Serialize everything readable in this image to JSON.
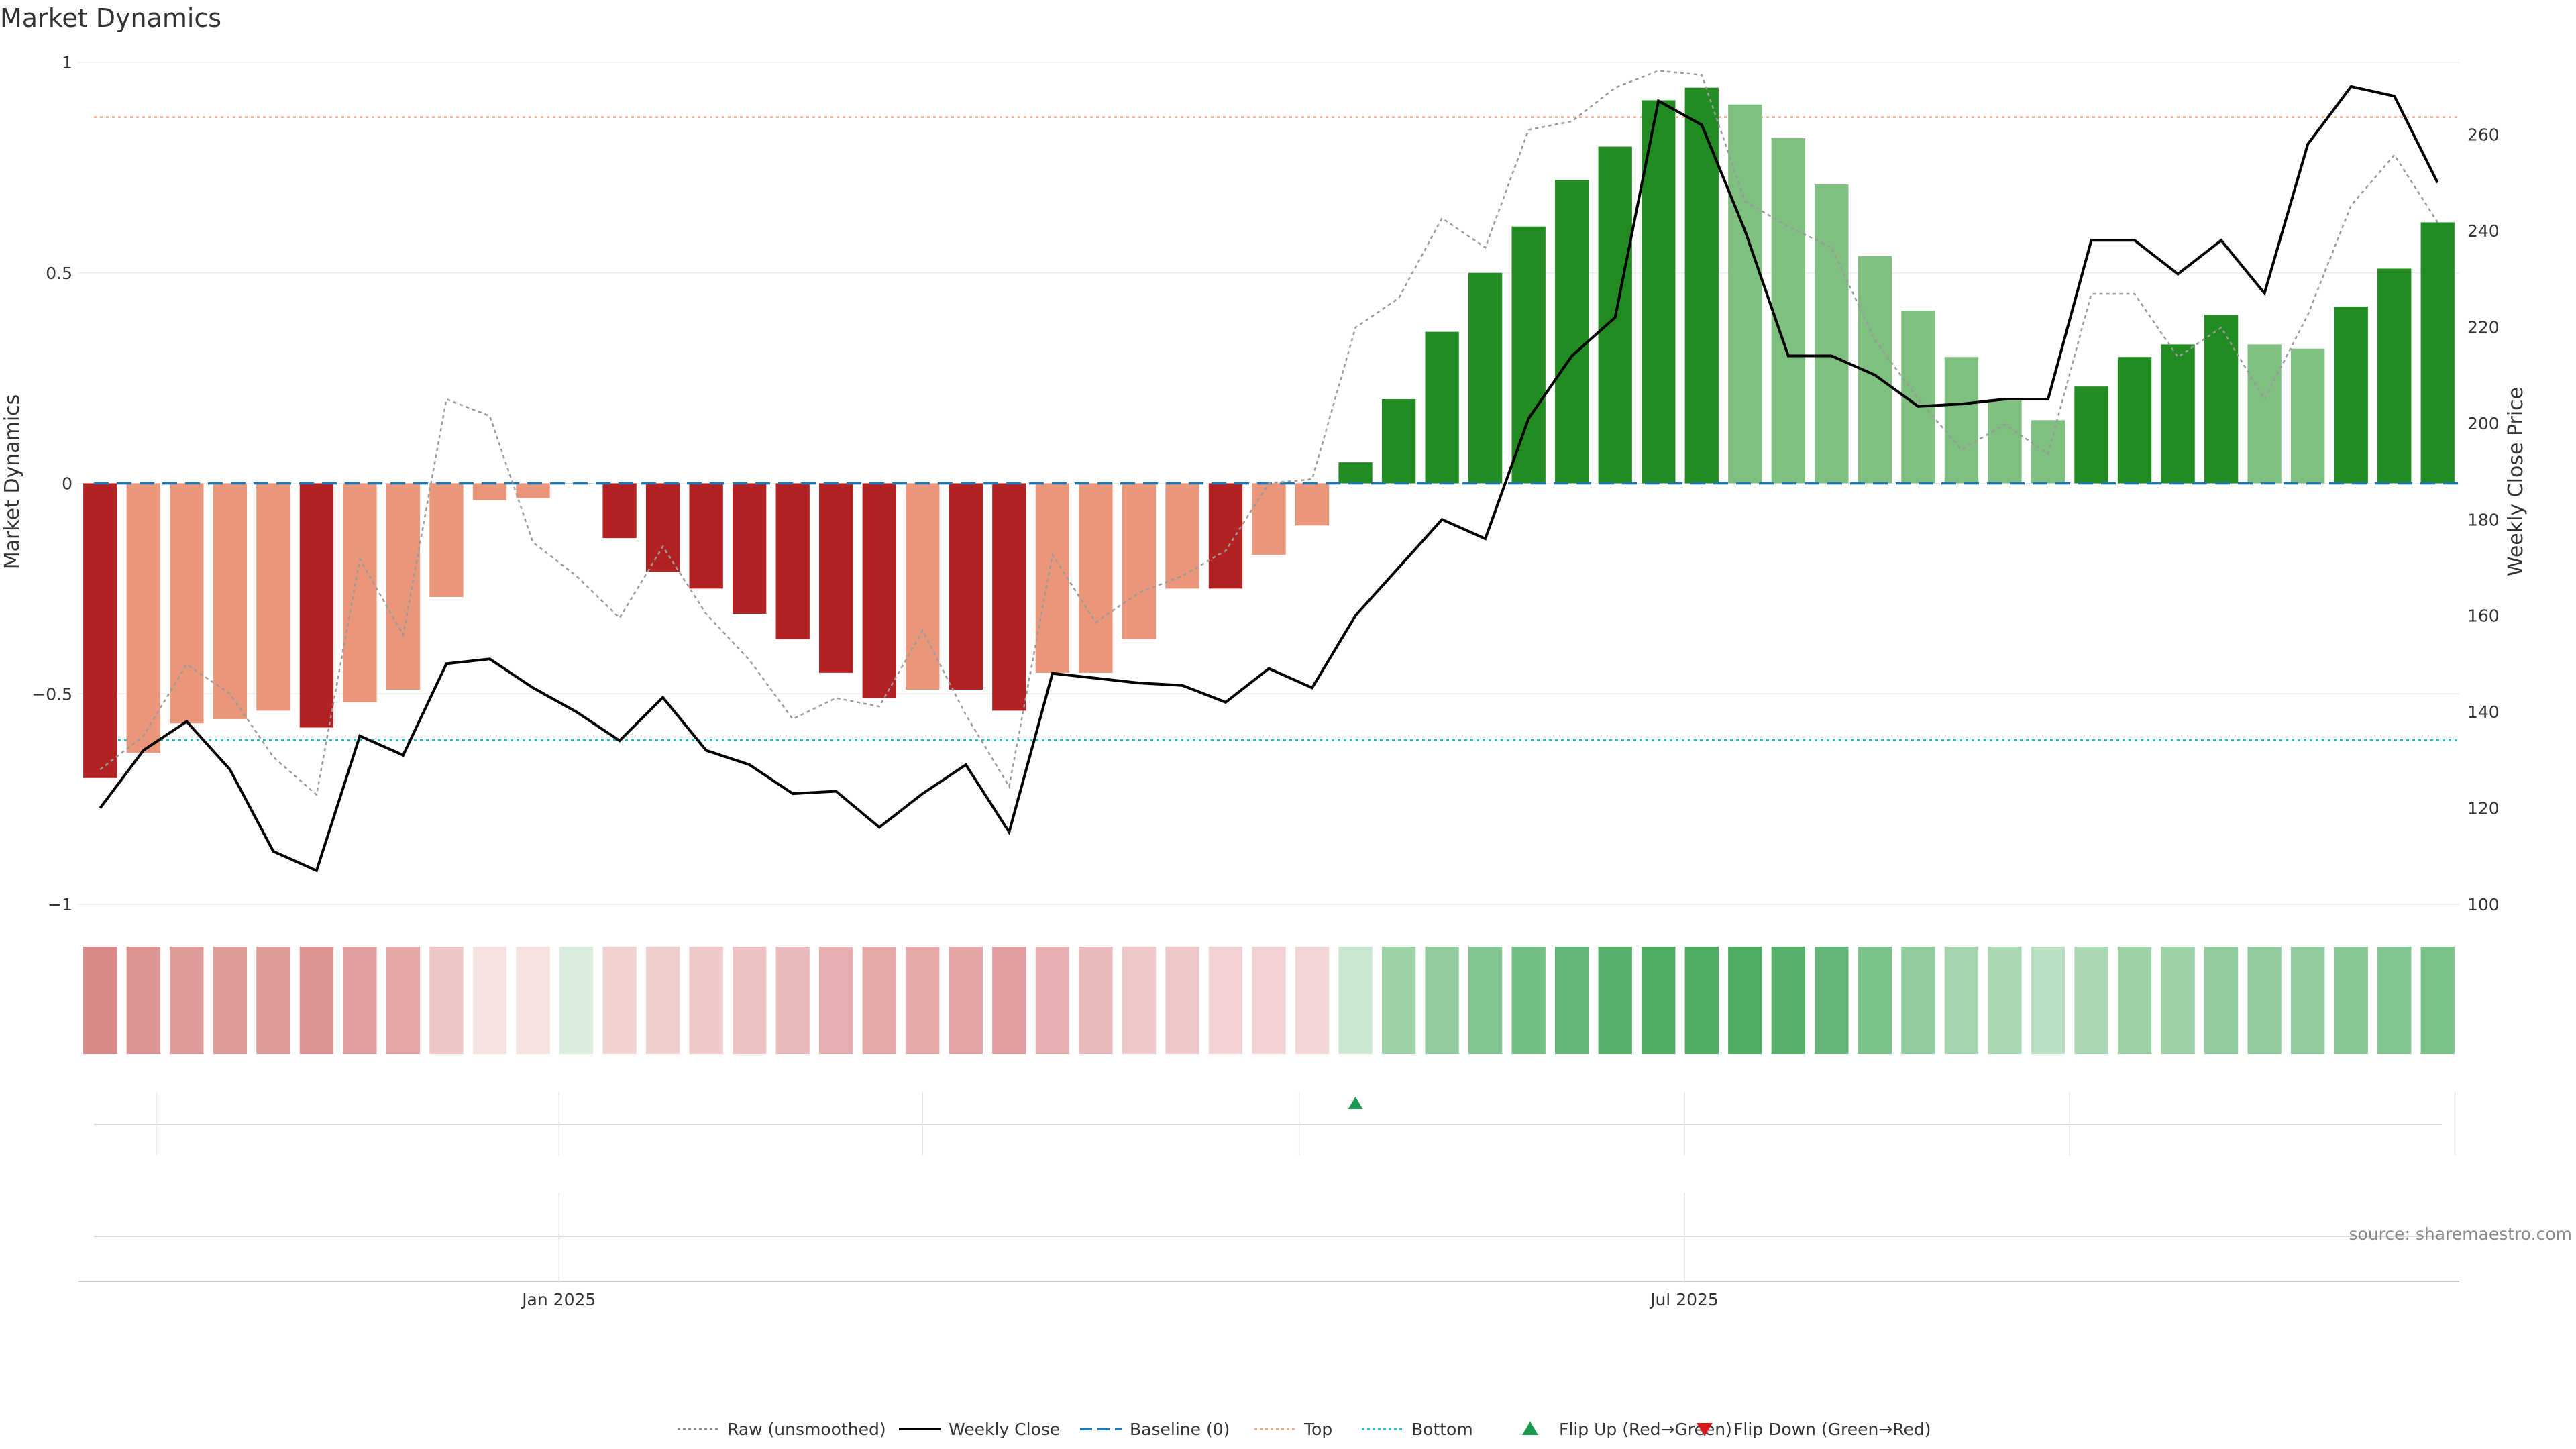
{
  "chart_data": {
    "type": "bar",
    "title": "Market Dynamics",
    "ylabel_left": "Market Dynamics",
    "ylabel_right": "Weekly Close Price",
    "ylim_left": [
      -1,
      1
    ],
    "ylim_right": [
      100,
      275
    ],
    "yticks_left": [
      1,
      0.5,
      0,
      -0.5,
      -1
    ],
    "yticks_left_labels": [
      "1",
      "0.5",
      "0",
      "−0.5",
      "−1"
    ],
    "yticks_right": [
      260,
      240,
      220,
      200,
      180,
      160,
      140,
      120,
      100
    ],
    "x_date_labels": [
      {
        "label": "Jan 2025",
        "index": 10.6
      },
      {
        "label": "Jul 2025",
        "index": 36.6
      }
    ],
    "thresholds": {
      "baseline": 0,
      "top": 0.87,
      "bottom": -0.61
    },
    "bars": [
      -0.7,
      -0.64,
      -0.57,
      -0.56,
      -0.54,
      -0.58,
      -0.52,
      -0.49,
      -0.27,
      -0.04,
      -0.035,
      0,
      -0.13,
      -0.21,
      -0.25,
      -0.31,
      -0.37,
      -0.45,
      -0.51,
      -0.49,
      -0.49,
      -0.54,
      -0.45,
      -0.45,
      -0.37,
      -0.25,
      -0.25,
      -0.17,
      -0.1,
      0.05,
      0.2,
      0.36,
      0.5,
      0.61,
      0.72,
      0.8,
      0.91,
      0.94,
      0.9,
      0.82,
      0.71,
      0.54,
      0.41,
      0.3,
      0.2,
      0.15,
      0.23,
      0.3,
      0.33,
      0.4,
      0.33,
      0.32,
      0.42,
      0.51,
      0.62
    ],
    "bar_states": [
      "strong",
      "weak",
      "weak",
      "weak",
      "weak",
      "strong",
      "weak",
      "weak",
      "weak",
      "weak",
      "weak",
      "weak",
      "strong",
      "strong",
      "strong",
      "strong",
      "strong",
      "strong",
      "strong",
      "weak",
      "strong",
      "strong",
      "weak",
      "weak",
      "weak",
      "weak",
      "strong",
      "weak",
      "weak",
      "strong",
      "strong",
      "strong",
      "strong",
      "strong",
      "strong",
      "strong",
      "strong",
      "strong",
      "weak",
      "weak",
      "weak",
      "weak",
      "weak",
      "weak",
      "weak",
      "weak",
      "strong",
      "strong",
      "strong",
      "strong",
      "weak",
      "weak",
      "strong",
      "strong",
      "strong"
    ],
    "raw_unsmoothed": [
      -0.68,
      -0.6,
      -0.43,
      -0.5,
      -0.65,
      -0.74,
      -0.18,
      -0.36,
      0.2,
      0.16,
      -0.14,
      -0.22,
      -0.32,
      -0.15,
      -0.31,
      -0.42,
      -0.56,
      -0.51,
      -0.53,
      -0.35,
      -0.55,
      -0.72,
      -0.17,
      -0.33,
      -0.26,
      -0.22,
      -0.16,
      0.0,
      0.01,
      0.37,
      0.44,
      0.63,
      0.56,
      0.84,
      0.86,
      0.94,
      0.98,
      0.97,
      0.67,
      0.61,
      0.56,
      0.34,
      0.2,
      0.08,
      0.14,
      0.07,
      0.45,
      0.45,
      0.3,
      0.37,
      0.2,
      0.4,
      0.66,
      0.78,
      0.62
    ],
    "weekly_close": [
      120,
      132,
      138,
      128,
      111,
      107,
      135,
      131,
      150,
      151,
      145,
      140,
      134,
      143,
      132,
      129,
      123,
      123.5,
      116,
      123,
      129,
      115,
      148,
      147,
      146,
      145.5,
      142,
      149,
      145,
      160,
      170,
      180,
      176,
      201,
      214,
      222,
      267,
      262,
      240,
      214,
      214,
      210,
      203.5,
      204,
      205,
      205,
      238,
      238,
      231,
      238,
      227,
      258,
      270,
      268,
      250
    ],
    "regime_strip": [
      0.85,
      0.78,
      0.72,
      0.72,
      0.72,
      0.78,
      0.7,
      0.64,
      0.42,
      0.22,
      0.22,
      0.22,
      0.34,
      0.36,
      0.4,
      0.45,
      0.5,
      0.57,
      0.62,
      0.62,
      0.65,
      0.7,
      0.57,
      0.5,
      0.4,
      0.4,
      0.33,
      0.33,
      0.3,
      0.3,
      0.55,
      0.62,
      0.7,
      0.78,
      0.88,
      0.95,
      1.0,
      1.0,
      1.0,
      0.95,
      0.88,
      0.75,
      0.62,
      0.52,
      0.48,
      0.4,
      0.48,
      0.55,
      0.55,
      0.62,
      0.62,
      0.62,
      0.67,
      0.7,
      0.75
    ],
    "flip_up_markers": [
      29
    ],
    "flip_down_markers": [],
    "legend": [
      {
        "label": "Raw (unsmoothed)",
        "kind": "dotted-line",
        "color": "#888888"
      },
      {
        "label": "Weekly Close",
        "kind": "solid-line",
        "color": "#000000"
      },
      {
        "label": "Baseline (0)",
        "kind": "dashed-line",
        "color": "#1f77b4"
      },
      {
        "label": "Top",
        "kind": "dotted-line",
        "color": "#f4a582"
      },
      {
        "label": "Bottom",
        "kind": "dotted-line",
        "color": "#17becf"
      },
      {
        "label": "Flip Up (Red→Green)",
        "kind": "triangle-up",
        "color": "#1a9850"
      },
      {
        "label": "Flip Down (Green→Red)",
        "kind": "triangle-down",
        "color": "#d7191c"
      }
    ],
    "legend_position": "bottom-center",
    "source": "source: sharemaestro.com"
  },
  "colors": {
    "strong_red": "#b22222",
    "weak_red": "#e9967a",
    "strong_green": "#228b22",
    "weak_green": "#7fbf7f",
    "strip_red": "#cd5c5c",
    "strip_green": "#2e9e47"
  }
}
